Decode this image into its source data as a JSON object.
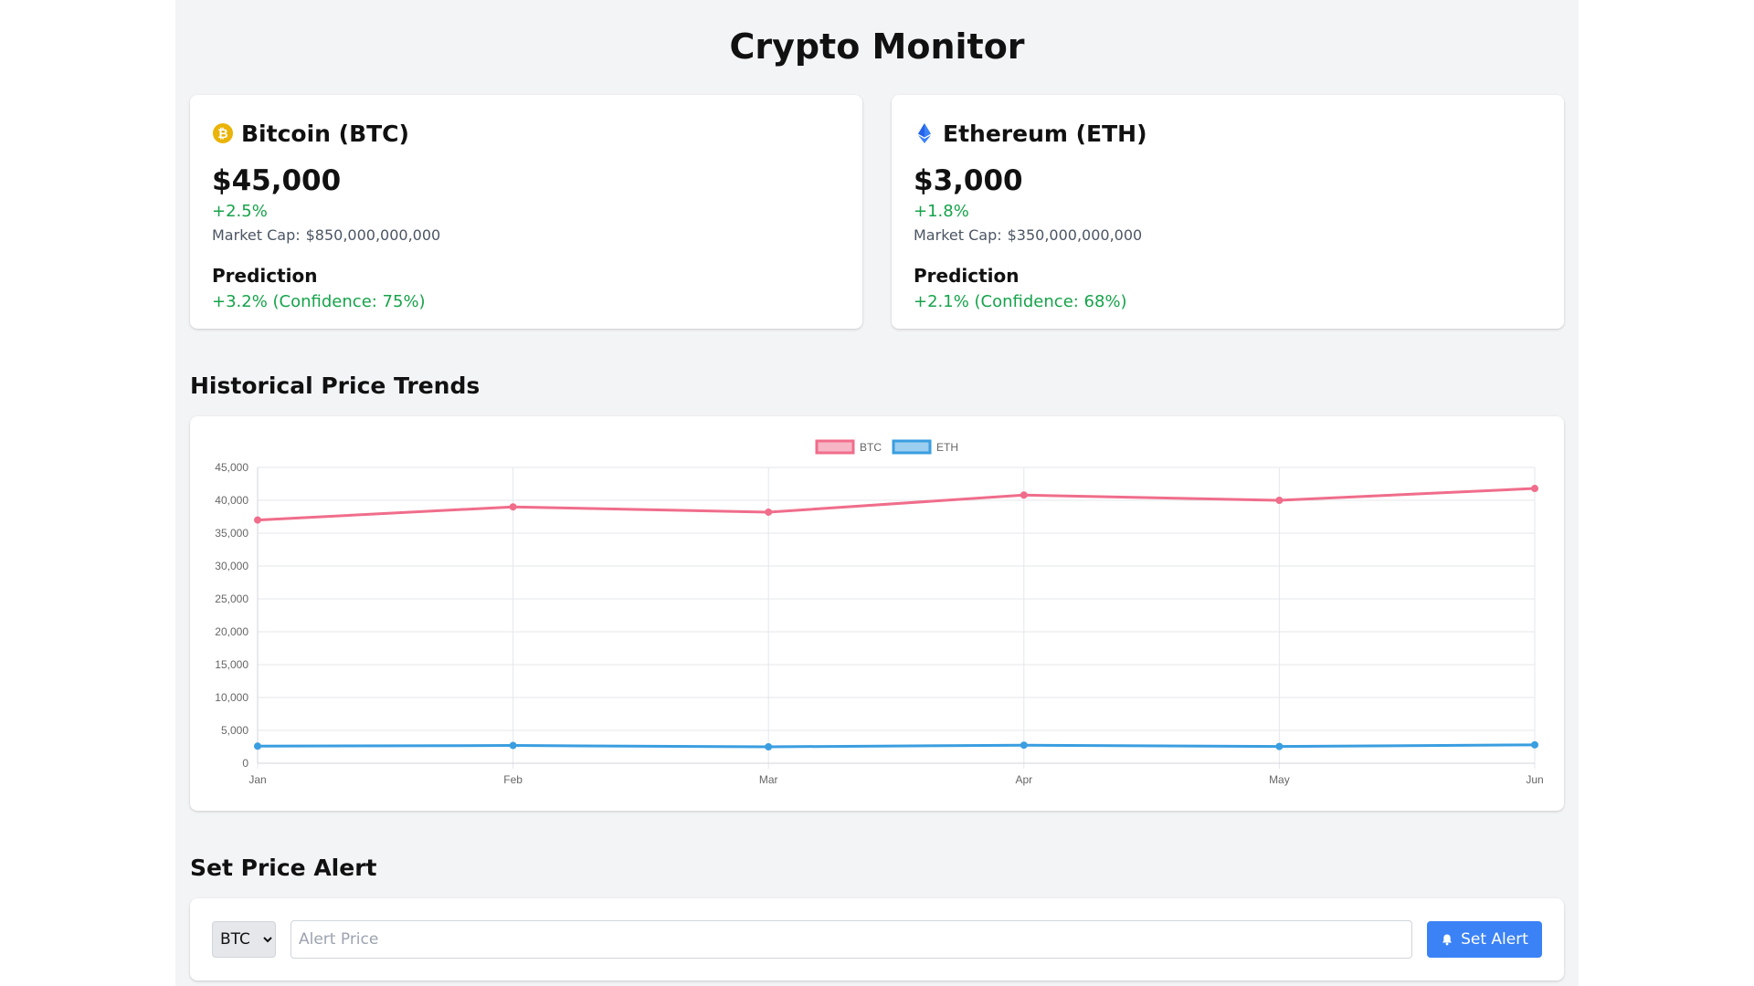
{
  "app": {
    "title": "Crypto Monitor"
  },
  "coins": [
    {
      "name": "Bitcoin (BTC)",
      "icon": "bitcoin-icon",
      "icon_color": "#eab308",
      "price": "$45,000",
      "change": "+2.5%",
      "market_cap_label": "Market Cap:",
      "market_cap_value": "$850,000,000,000",
      "prediction_title": "Prediction",
      "prediction_value": "+3.2% (Confidence: 75%)"
    },
    {
      "name": "Ethereum (ETH)",
      "icon": "ethereum-icon",
      "icon_color": "#3b82f6",
      "price": "$3,000",
      "change": "+1.8%",
      "market_cap_label": "Market Cap:",
      "market_cap_value": "$350,000,000,000",
      "prediction_title": "Prediction",
      "prediction_value": "+2.1% (Confidence: 68%)"
    }
  ],
  "sections": {
    "history_title": "Historical Price Trends",
    "alert_title": "Set Price Alert"
  },
  "chart_data": {
    "type": "line",
    "categories": [
      "Jan",
      "Feb",
      "Mar",
      "Apr",
      "May",
      "Jun"
    ],
    "series": [
      {
        "name": "BTC",
        "color": "#f06d8b",
        "values": [
          37000,
          39000,
          38200,
          40800,
          40000,
          41800
        ]
      },
      {
        "name": "ETH",
        "color": "#3a9ee0",
        "values": [
          2600,
          2700,
          2500,
          2750,
          2550,
          2800
        ]
      }
    ],
    "ylim": [
      0,
      45000
    ],
    "yticks": [
      0,
      5000,
      10000,
      15000,
      20000,
      25000,
      30000,
      35000,
      40000,
      45000
    ],
    "ytick_labels": [
      "0",
      "5,000",
      "10,000",
      "15,000",
      "20,000",
      "25,000",
      "30,000",
      "35,000",
      "40,000",
      "45,000"
    ],
    "legend_position": "top-center",
    "grid": true,
    "title": "",
    "xlabel": "",
    "ylabel": ""
  },
  "alert": {
    "selected_coin": "BTC",
    "options": [
      "BTC"
    ],
    "price_value": "",
    "price_placeholder": "Alert Price",
    "button_label": "Set Alert",
    "button_icon": "bell-icon",
    "button_color": "#3b82f6"
  }
}
